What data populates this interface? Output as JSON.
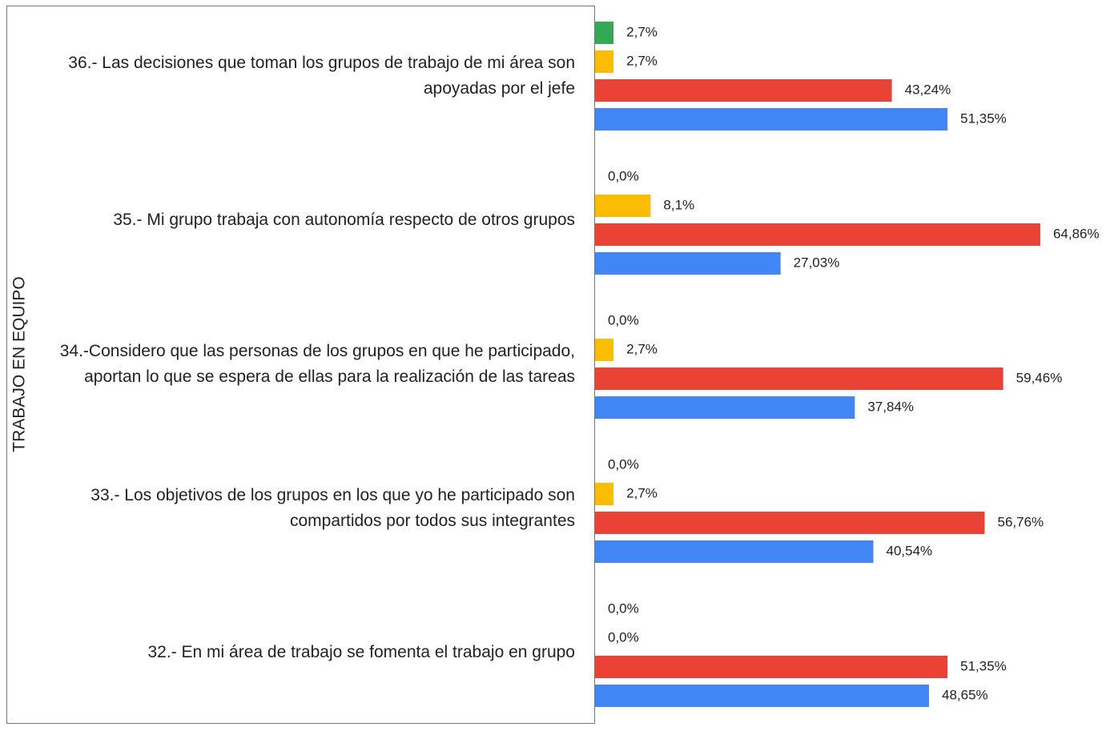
{
  "chart_data": {
    "type": "bar",
    "orientation": "horizontal",
    "y_label": "TRABAJO EN EQUIPO",
    "categories": [
      "36.- Las decisiones que toman los grupos de trabajo de mi área son apoyadas por el jefe",
      "35.- Mi grupo trabaja con autonomía respecto de otros grupos",
      "34.-Considero que las personas de los grupos en que he participado, aportan lo que se espera de ellas para la realización de las tareas",
      "33.- Los objetivos de los grupos en los que yo he participado son compartidos por todos sus integrantes",
      "32.- En mi área de trabajo se fomenta el trabajo en grupo"
    ],
    "series": [
      {
        "color": "#34a853",
        "values": [
          2.7,
          0.0,
          0.0,
          0.0,
          0.0
        ],
        "value_labels": [
          "2,7%",
          "0,0%",
          "0,0%",
          "0,0%",
          "0,0%"
        ]
      },
      {
        "color": "#fbbc04",
        "values": [
          2.7,
          8.1,
          2.7,
          2.7,
          0.0
        ],
        "value_labels": [
          "2,7%",
          "8,1%",
          "2,7%",
          "2,7%",
          "0,0%"
        ]
      },
      {
        "color": "#ea4335",
        "values": [
          43.24,
          64.86,
          59.46,
          56.76,
          51.35
        ],
        "value_labels": [
          "43,24%",
          "64,86%",
          "59,46%",
          "56,76%",
          "51,35%"
        ]
      },
      {
        "color": "#4285f4",
        "values": [
          51.35,
          27.03,
          37.84,
          40.54,
          48.65
        ],
        "value_labels": [
          "51,35%",
          "27,03%",
          "37,84%",
          "40,54%",
          "48,65%"
        ]
      }
    ],
    "xlim": [
      0,
      70
    ]
  }
}
